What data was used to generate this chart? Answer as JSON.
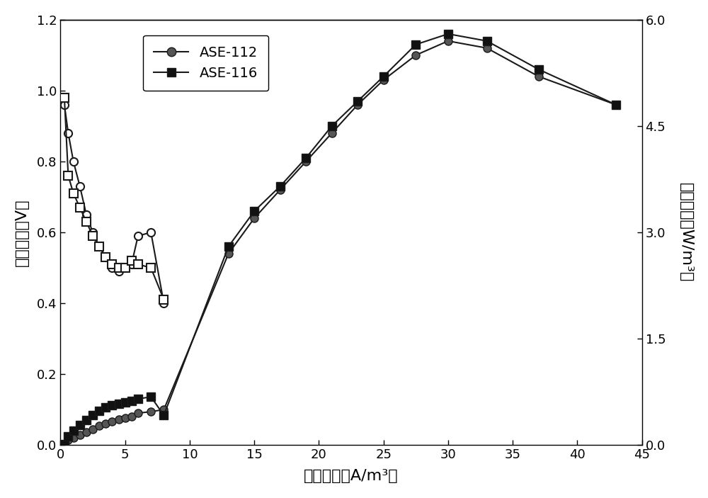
{
  "voltage_112_x": [
    0.3,
    0.6,
    1.0,
    1.5,
    2.0,
    2.5,
    3.0,
    3.5,
    4.0,
    4.5,
    5.0,
    5.5,
    6.0,
    7.0,
    8.0
  ],
  "voltage_112_y": [
    0.96,
    0.88,
    0.8,
    0.73,
    0.65,
    0.6,
    0.56,
    0.53,
    0.5,
    0.49,
    0.5,
    0.51,
    0.59,
    0.6,
    0.4
  ],
  "voltage_116_x": [
    0.3,
    0.6,
    1.0,
    1.5,
    2.0,
    2.5,
    3.0,
    3.5,
    4.0,
    4.5,
    5.0,
    5.5,
    6.0,
    7.0,
    8.0
  ],
  "voltage_116_y": [
    0.98,
    0.76,
    0.71,
    0.67,
    0.63,
    0.59,
    0.56,
    0.53,
    0.51,
    0.5,
    0.5,
    0.52,
    0.51,
    0.5,
    0.41
  ],
  "power_112_x": [
    0.3,
    0.6,
    1.0,
    1.5,
    2.0,
    2.5,
    3.0,
    3.5,
    4.0,
    4.5,
    5.0,
    5.5,
    6.0,
    7.0,
    8.0,
    13.0,
    15.0,
    17.0,
    19.0,
    21.0,
    23.0,
    25.0,
    27.5,
    30.0,
    33.0,
    37.0,
    43.0
  ],
  "power_112_y": [
    0.01,
    0.07,
    0.1,
    0.14,
    0.18,
    0.22,
    0.27,
    0.3,
    0.33,
    0.36,
    0.38,
    0.4,
    0.45,
    0.47,
    0.5,
    2.7,
    3.2,
    3.6,
    4.0,
    4.4,
    4.8,
    5.15,
    5.5,
    5.7,
    5.6,
    5.2,
    4.8
  ],
  "power_116_x": [
    0.3,
    0.6,
    1.0,
    1.5,
    2.0,
    2.5,
    3.0,
    3.5,
    4.0,
    4.5,
    5.0,
    5.5,
    6.0,
    7.0,
    8.0,
    13.0,
    15.0,
    17.0,
    19.0,
    21.0,
    23.0,
    25.0,
    27.5,
    30.0,
    33.0,
    37.0,
    43.0
  ],
  "power_116_y": [
    0.01,
    0.12,
    0.2,
    0.28,
    0.35,
    0.42,
    0.48,
    0.53,
    0.56,
    0.58,
    0.6,
    0.62,
    0.65,
    0.68,
    0.42,
    2.8,
    3.3,
    3.65,
    4.05,
    4.5,
    4.85,
    5.2,
    5.65,
    5.8,
    5.7,
    5.3,
    4.8
  ],
  "ylabel_left": "输出电压（V）",
  "ylabel_right": "功率密度（W/m³）",
  "xlabel": "电流密度（A/m³）",
  "legend_112": "ASE-112",
  "legend_116": "ASE-116",
  "ylim_left": [
    0.0,
    1.2
  ],
  "ylim_right": [
    0.0,
    6.0
  ],
  "xlim": [
    0,
    45
  ],
  "xticks": [
    0,
    5,
    10,
    15,
    20,
    25,
    30,
    35,
    40,
    45
  ],
  "yticks_left": [
    0.0,
    0.2,
    0.4,
    0.6,
    0.8,
    1.0,
    1.2
  ],
  "yticks_right": [
    0.0,
    1.5,
    3.0,
    4.5,
    6.0
  ],
  "line_color": "#1a1a1a",
  "bg_color": "#ffffff"
}
